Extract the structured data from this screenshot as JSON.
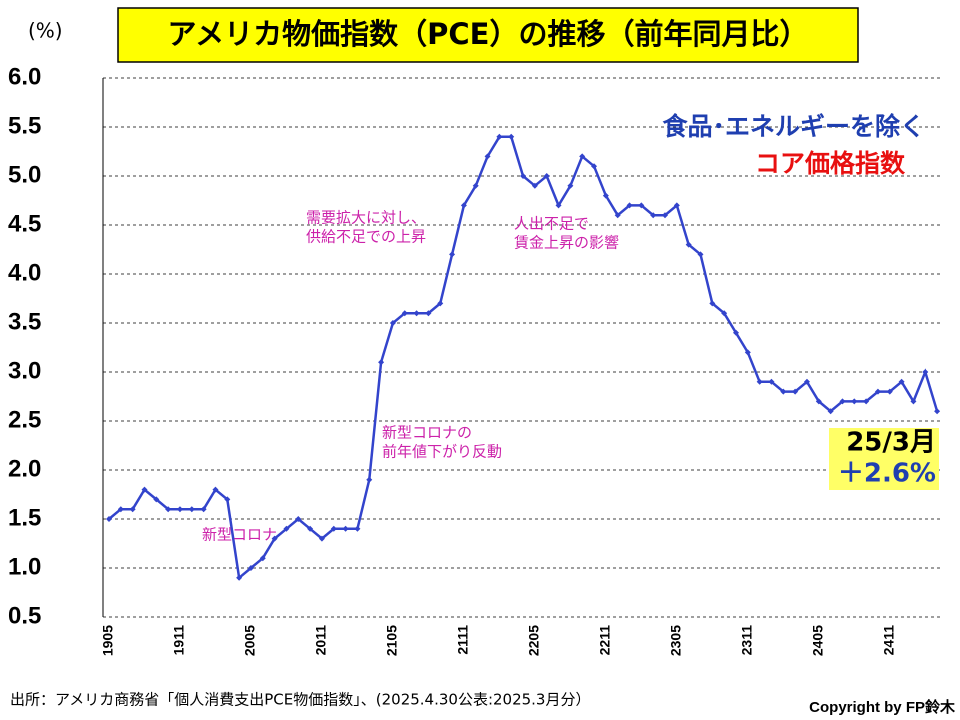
{
  "chart_data": {
    "type": "line",
    "title": "アメリカ物価指数（PCE）の推移（前年同月比）",
    "y_label": "(%)",
    "categories": [
      "1905",
      null,
      null,
      null,
      null,
      null,
      "1911",
      null,
      null,
      null,
      null,
      null,
      "2005",
      null,
      null,
      null,
      null,
      null,
      "2011",
      null,
      null,
      null,
      null,
      null,
      "2105",
      null,
      null,
      null,
      null,
      null,
      "2111",
      null,
      null,
      null,
      null,
      null,
      "2205",
      null,
      null,
      null,
      null,
      null,
      "2211",
      null,
      null,
      null,
      null,
      null,
      "2305",
      null,
      null,
      null,
      null,
      null,
      "2311",
      null,
      null,
      null,
      null,
      null,
      "2405",
      null,
      null,
      null,
      null,
      null,
      "2411",
      null,
      null,
      null,
      null
    ],
    "series": [
      {
        "name": "コア価格指数",
        "color": "#3344cc",
        "values": [
          1.5,
          1.6,
          1.6,
          1.8,
          1.7,
          1.6,
          1.6,
          1.6,
          1.6,
          1.8,
          1.7,
          0.9,
          1.0,
          1.1,
          1.3,
          1.4,
          1.5,
          1.4,
          1.3,
          1.4,
          1.4,
          1.4,
          1.9,
          3.1,
          3.5,
          3.6,
          3.6,
          3.6,
          3.7,
          4.2,
          4.7,
          4.9,
          5.2,
          5.4,
          5.4,
          5.0,
          4.9,
          5.0,
          4.7,
          4.9,
          5.2,
          5.1,
          4.8,
          4.6,
          4.7,
          4.7,
          4.6,
          4.6,
          4.7,
          4.3,
          4.2,
          3.7,
          3.6,
          3.4,
          3.2,
          2.9,
          2.9,
          2.8,
          2.8,
          2.9,
          2.7,
          2.6,
          2.7,
          2.7,
          2.7,
          2.8,
          2.8,
          2.9,
          2.7,
          3.0,
          2.6
        ]
      }
    ],
    "ylim": [
      0.5,
      6.0
    ],
    "yticks": [
      {
        "value": 6,
        "label": "6.0"
      },
      5.5,
      {
        "value": 5,
        "label": "5.0"
      },
      4.5,
      {
        "value": 4,
        "label": "4.0"
      },
      3.5,
      {
        "value": 3,
        "label": "3.0"
      },
      2.5,
      {
        "value": 2,
        "label": "2.0"
      },
      1.5,
      {
        "value": 1,
        "label": "1.0"
      },
      0.5
    ],
    "grid": true,
    "legend_text": {
      "lines": [
        "食品･エネルギーを除く",
        "コア価格指数"
      ],
      "colors": [
        "#1f3fb0",
        "#e81010"
      ]
    },
    "annotations": [
      {
        "lines": [
          "新型コロナ"
        ],
        "color": "#cc22aa"
      },
      {
        "lines": [
          "新型コロナの",
          "前年値下がり反動"
        ],
        "color": "#cc22aa"
      },
      {
        "lines": [
          "需要拡大に対し、",
          "供給不足での上昇"
        ],
        "color": "#cc22aa"
      },
      {
        "lines": [
          "人出不足で",
          "賃金上昇の影響"
        ],
        "color": "#cc22aa"
      }
    ],
    "callout": {
      "lines": [
        "25/3月",
        "＋2.6%"
      ],
      "colors": [
        "#000000",
        "#1f3fb0"
      ],
      "background": "#ffff66"
    },
    "source": "出所：アメリカ商務省「個人消費支出PCE物価指数」、(2025.4.30公表:2025.3月分）",
    "copyright": "Copyright by FP鈴木"
  }
}
